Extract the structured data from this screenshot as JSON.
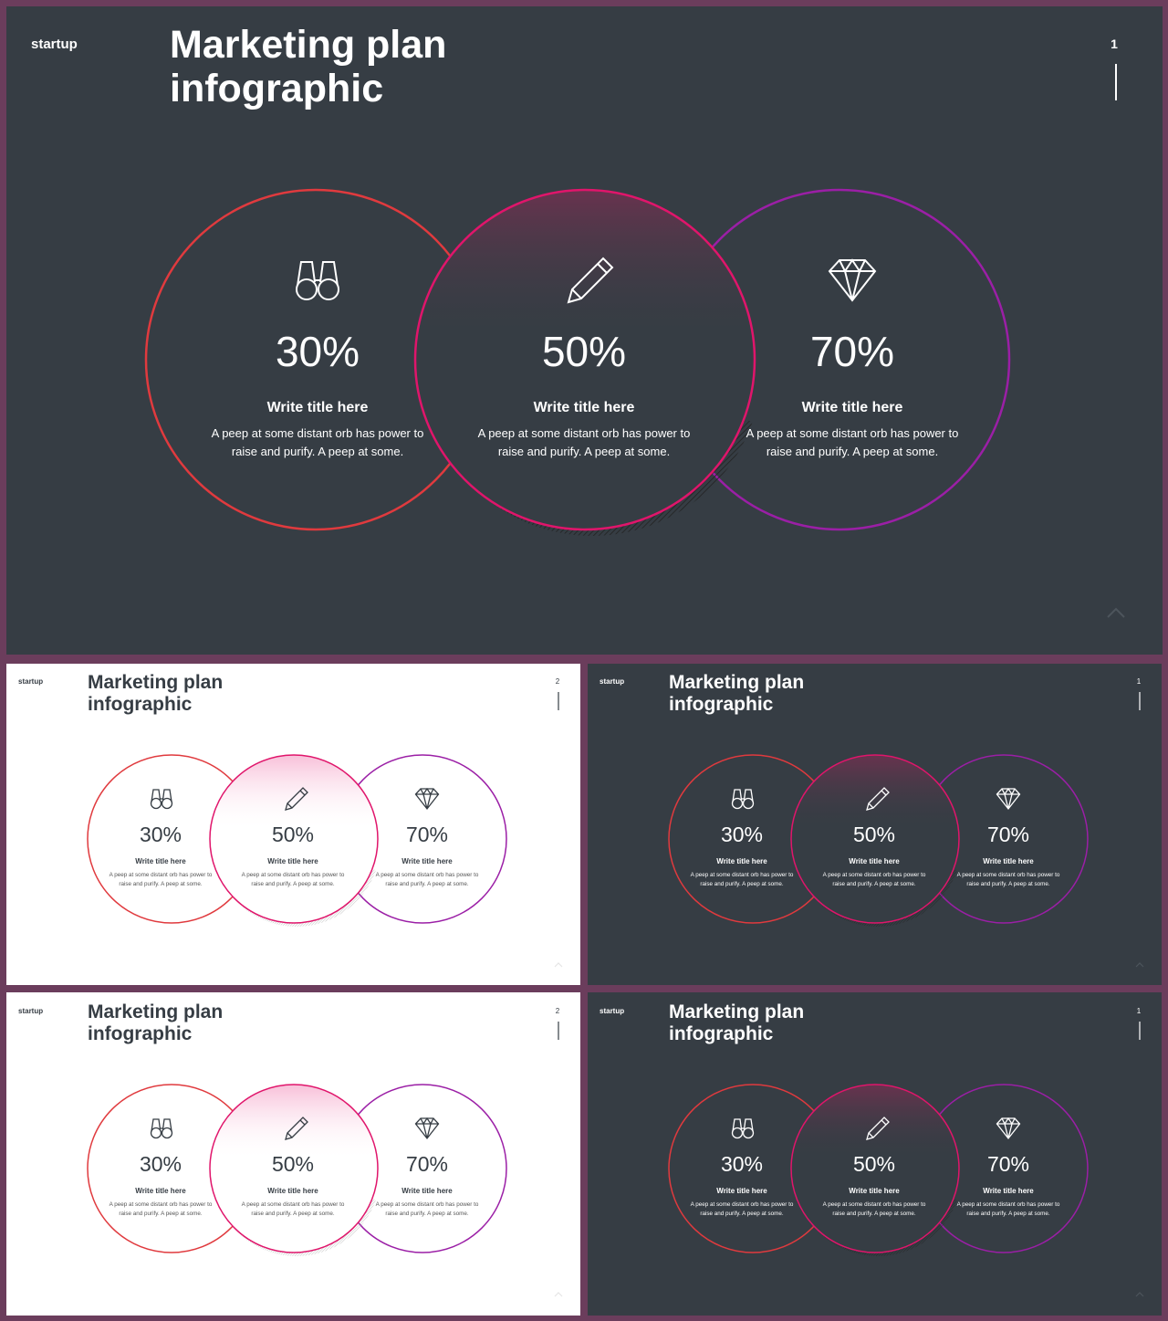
{
  "colors": {
    "dark_bg": "#363d44",
    "light_bg": "#ffffff",
    "frame": "#6b3d5c",
    "circle_left": "#e03a3e",
    "circle_mid": "#e0156b",
    "circle_right": "#9b1fa6"
  },
  "slides": [
    {
      "id": "main",
      "theme": "dark",
      "brand": "startup",
      "title_line1": "Marketing plan",
      "title_line2": "infographic",
      "page": "1",
      "items": [
        {
          "icon": "binoculars-icon",
          "value": "30%",
          "title": "Write title here",
          "text1": "A peep at some distant orb has power to",
          "text2": "raise and purify. A peep at some."
        },
        {
          "icon": "pencil-icon",
          "value": "50%",
          "title": "Write title here",
          "text1": "A peep at some distant orb has power to",
          "text2": "raise and purify. A peep at some."
        },
        {
          "icon": "diamond-icon",
          "value": "70%",
          "title": "Write title here",
          "text1": "A peep at some distant orb has power to",
          "text2": "raise and purify. A peep at some."
        }
      ]
    },
    {
      "id": "thumb-1",
      "theme": "light",
      "brand": "startup",
      "title_line1": "Marketing plan",
      "title_line2": "infographic",
      "page": "2",
      "items": [
        {
          "icon": "binoculars-icon",
          "value": "30%",
          "title": "Write title here",
          "text1": "A peep at some distant orb has power to",
          "text2": "raise and purify. A peep at some."
        },
        {
          "icon": "pencil-icon",
          "value": "50%",
          "title": "Write title here",
          "text1": "A peep at some distant orb has power to",
          "text2": "raise and purify. A peep at some."
        },
        {
          "icon": "diamond-icon",
          "value": "70%",
          "title": "Write title here",
          "text1": "A peep at some distant orb has power to",
          "text2": "raise and purify. A peep at some."
        }
      ]
    },
    {
      "id": "thumb-2",
      "theme": "dark",
      "brand": "startup",
      "title_line1": "Marketing plan",
      "title_line2": "infographic",
      "page": "1",
      "items": [
        {
          "icon": "binoculars-icon",
          "value": "30%",
          "title": "Write title here",
          "text1": "A peep at some distant orb has power to",
          "text2": "raise and purify. A peep at some."
        },
        {
          "icon": "pencil-icon",
          "value": "50%",
          "title": "Write title here",
          "text1": "A peep at some distant orb has power to",
          "text2": "raise and purify. A peep at some."
        },
        {
          "icon": "diamond-icon",
          "value": "70%",
          "title": "Write title here",
          "text1": "A peep at some distant orb has power to",
          "text2": "raise and purify. A peep at some."
        }
      ]
    },
    {
      "id": "thumb-3",
      "theme": "light",
      "brand": "startup",
      "title_line1": "Marketing plan",
      "title_line2": "infographic",
      "page": "2",
      "items": [
        {
          "icon": "binoculars-icon",
          "value": "30%",
          "title": "Write title here",
          "text1": "A peep at some distant orb has power to",
          "text2": "raise and purify. A peep at some."
        },
        {
          "icon": "pencil-icon",
          "value": "50%",
          "title": "Write title here",
          "text1": "A peep at some distant orb has power to",
          "text2": "raise and purify. A peep at some."
        },
        {
          "icon": "diamond-icon",
          "value": "70%",
          "title": "Write title here",
          "text1": "A peep at some distant orb has power to",
          "text2": "raise and purify. A peep at some."
        }
      ]
    },
    {
      "id": "thumb-4",
      "theme": "dark",
      "brand": "startup",
      "title_line1": "Marketing plan",
      "title_line2": "infographic",
      "page": "1",
      "items": [
        {
          "icon": "binoculars-icon",
          "value": "30%",
          "title": "Write title here",
          "text1": "A peep at some distant orb has power to",
          "text2": "raise and purify. A peep at some."
        },
        {
          "icon": "pencil-icon",
          "value": "50%",
          "title": "Write title here",
          "text1": "A peep at some distant orb has power to",
          "text2": "raise and purify. A peep at some."
        },
        {
          "icon": "diamond-icon",
          "value": "70%",
          "title": "Write title here",
          "text1": "A peep at some distant orb has power to",
          "text2": "raise and purify. A peep at some."
        }
      ]
    }
  ]
}
